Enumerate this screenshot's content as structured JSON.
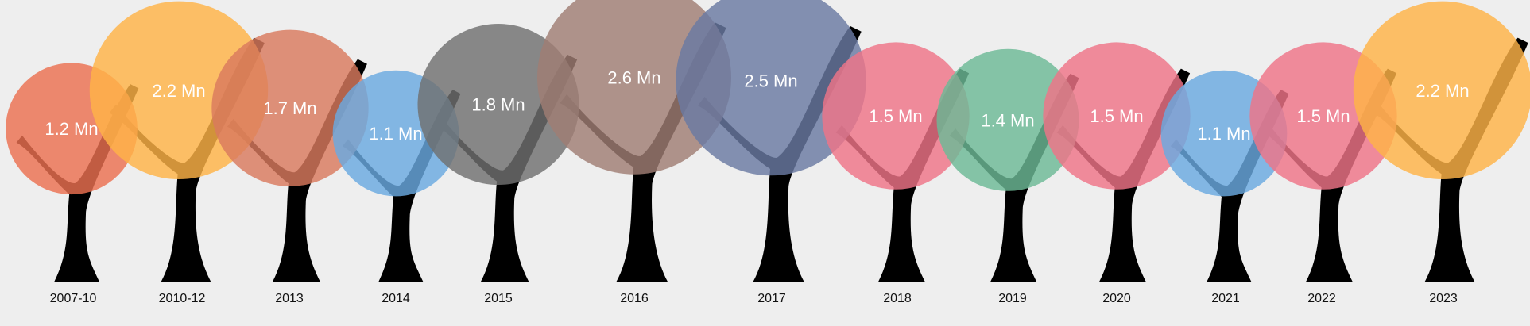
{
  "chart_data": {
    "type": "bubble-trees",
    "categories": [
      "2007-10",
      "2010-12",
      "2013",
      "2014",
      "2015",
      "2016",
      "2017",
      "2018",
      "2019",
      "2020",
      "2021",
      "2022",
      "2023"
    ],
    "values": [
      1.2,
      2.2,
      1.7,
      1.1,
      1.8,
      2.6,
      2.5,
      1.5,
      1.4,
      1.5,
      1.1,
      1.5,
      2.2
    ],
    "value_labels": [
      "1.2 Mn",
      "2.2 Mn",
      "1.7 Mn",
      "1.1 Mn",
      "1.8 Mn",
      "2.6 Mn",
      "2.5 Mn",
      "1.5 Mn",
      "1.4 Mn",
      "1.5 Mn",
      "1.1 Mn",
      "1.5 Mn",
      "2.2 Mn"
    ],
    "colors": [
      "#ec7050",
      "#ffb347",
      "#d97a5e",
      "#6aaae0",
      "#707070",
      "#a07e74",
      "#6a7aa2",
      "#ef7488",
      "#6dba96",
      "#ef7488",
      "#6aaae0",
      "#ef7488",
      "#ffb347"
    ],
    "trunk_color": "#000000",
    "unit": "Mn",
    "title": "",
    "xlabel": "",
    "ylabel": ""
  }
}
